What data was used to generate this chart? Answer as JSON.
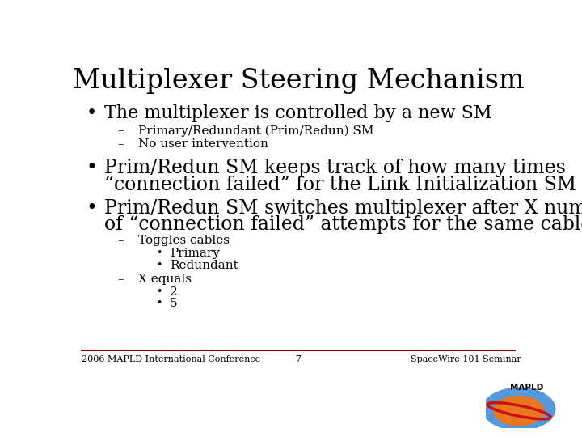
{
  "title": "Multiplexer Steering Mechanism",
  "title_fontsize": 24,
  "title_font": "serif",
  "background_color": "#ffffff",
  "text_color": "#000000",
  "footer_line_color": "#8B0000",
  "footer_left": "2006 MAPLD International Conference",
  "footer_center": "7",
  "footer_right": "SpaceWire 101 Seminar",
  "footer_fontsize": 8,
  "bullet1": "The multiplexer is controlled by a new SM",
  "bullet1_fontsize": 16,
  "sub1a": "Primary/Redundant (Prim/Redun) SM",
  "sub1b": "No user intervention",
  "sub_fontsize": 11,
  "bullet2_line1": "Prim/Redun SM keeps track of how many times",
  "bullet2_line2": "“connection failed” for the Link Initialization SM",
  "bullet2_fontsize": 17,
  "bullet3_line1": "Prim/Redun SM switches multiplexer after X number",
  "bullet3_line2": "of “connection failed” attempts for the same cable",
  "bullet3_fontsize": 17,
  "sub3a": "Toggles cables",
  "sub3a_sub1": "Primary",
  "sub3a_sub2": "Redundant",
  "sub3b": "X equals",
  "sub3b_sub1": "2",
  "sub3b_sub2": "5"
}
